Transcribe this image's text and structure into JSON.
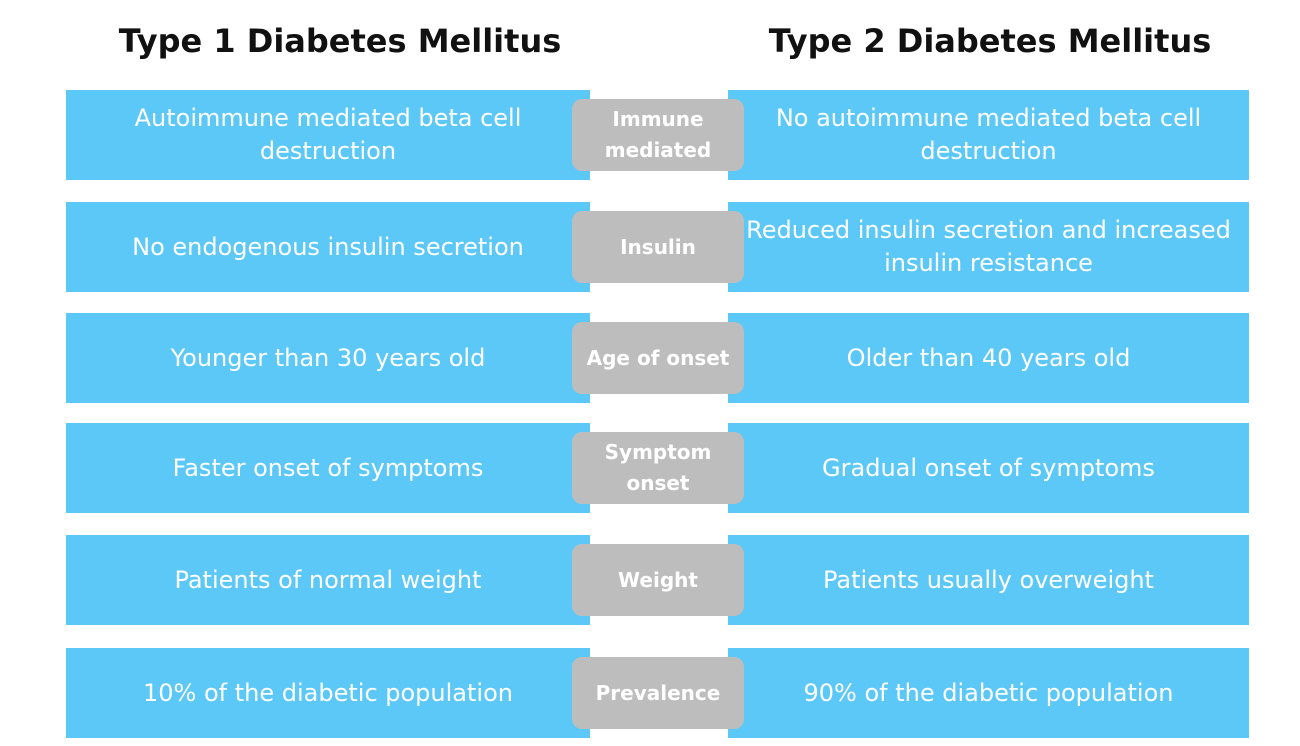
{
  "headings": {
    "left": "Type 1 Diabetes Mellitus",
    "right": "Type 2 Diabetes Mellitus"
  },
  "rows": [
    {
      "label": "Immune mediated",
      "type1": "Autoimmune mediated beta cell destruction",
      "type2": "No autoimmune mediated beta cell destruction"
    },
    {
      "label": "Insulin",
      "type1": "No endogenous insulin secretion",
      "type2": "Reduced insulin secretion and increased insulin resistance"
    },
    {
      "label": "Age of onset",
      "type1": "Younger than 30 years old",
      "type2": "Older than 40 years old"
    },
    {
      "label": "Symptom onset",
      "type1": "Faster onset of symptoms",
      "type2": "Gradual onset of symptoms"
    },
    {
      "label": "Weight",
      "type1": "Patients of normal weight",
      "type2": "Patients usually overweight"
    },
    {
      "label": "Prevalence",
      "type1": "10% of the diabetic population",
      "type2": "90% of the diabetic population"
    }
  ],
  "colors": {
    "cell_fill": "#5cc8f7",
    "label_fill": "#bdbdbd",
    "cell_text": "#ffffff",
    "heading_text": "#111111"
  }
}
